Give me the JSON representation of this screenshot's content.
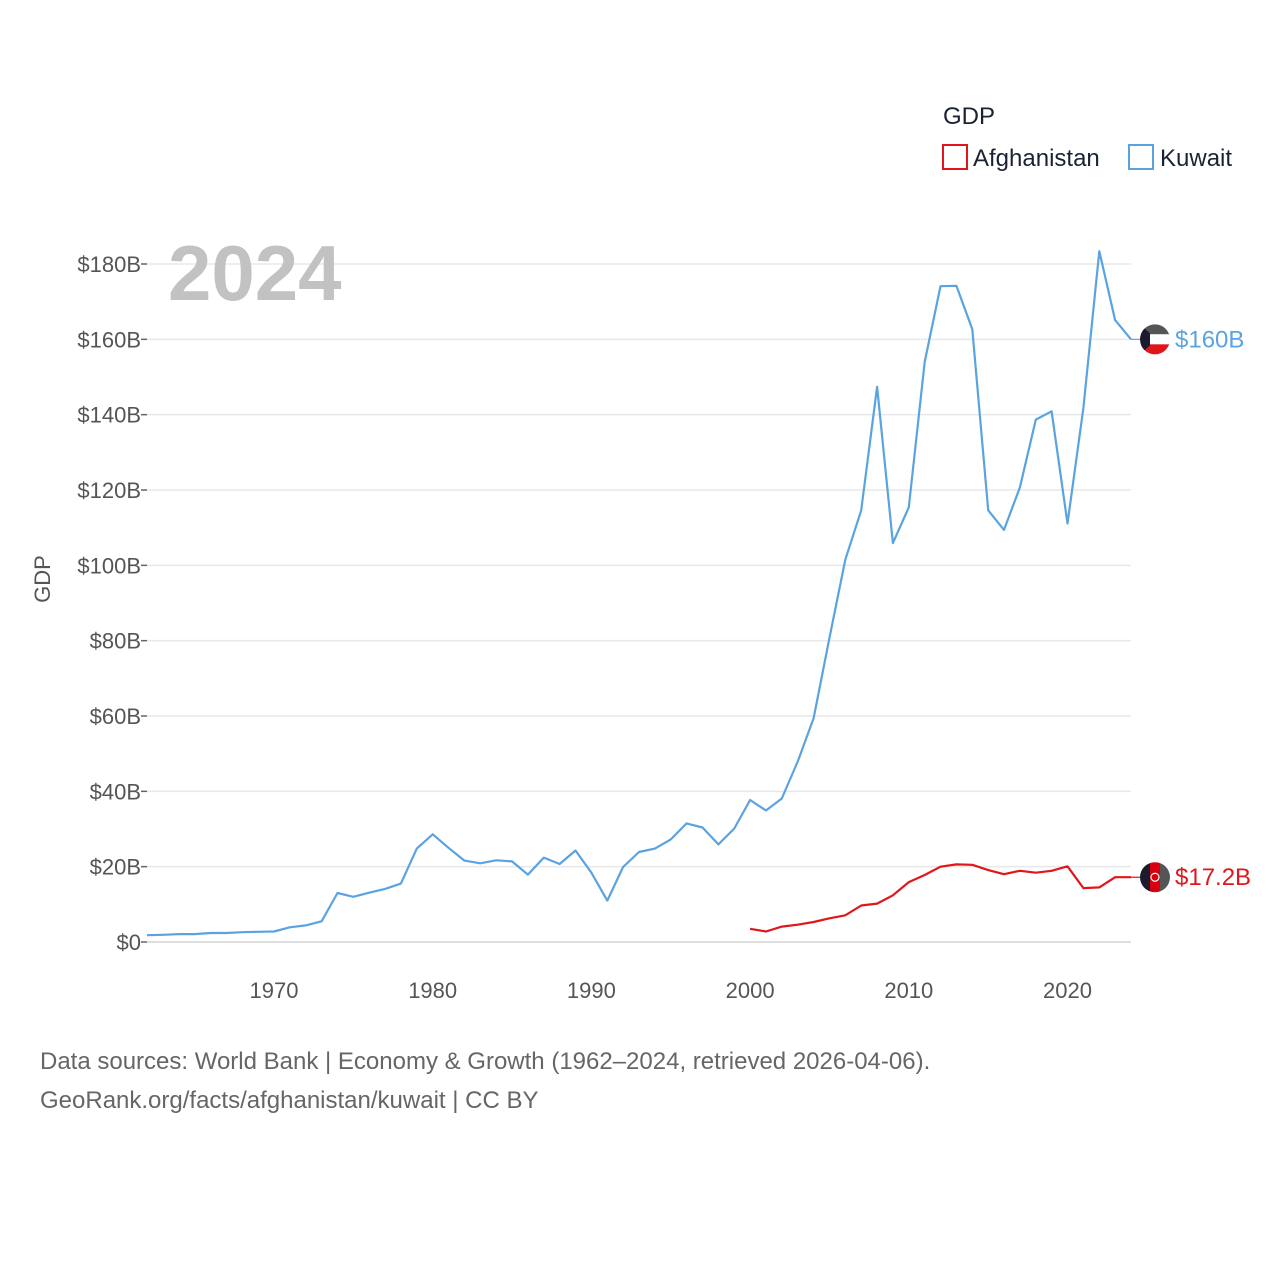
{
  "chart_data": {
    "type": "line",
    "title": "GDP",
    "year_label": "2024",
    "ylabel": "GDP",
    "xlabel": "",
    "xlim": [
      1962,
      2024
    ],
    "ylim": [
      0,
      180
    ],
    "y_ticks": [
      {
        "value": 0,
        "label": "$0"
      },
      {
        "value": 20,
        "label": "$20B"
      },
      {
        "value": 40,
        "label": "$40B"
      },
      {
        "value": 60,
        "label": "$60B"
      },
      {
        "value": 80,
        "label": "$80B"
      },
      {
        "value": 100,
        "label": "$100B"
      },
      {
        "value": 120,
        "label": "$120B"
      },
      {
        "value": 140,
        "label": "$140B"
      },
      {
        "value": 160,
        "label": "$160B"
      },
      {
        "value": 180,
        "label": "$180B"
      }
    ],
    "x_ticks": [
      {
        "value": 1970,
        "label": "1970"
      },
      {
        "value": 1980,
        "label": "1980"
      },
      {
        "value": 1990,
        "label": "1990"
      },
      {
        "value": 2000,
        "label": "2000"
      },
      {
        "value": 2010,
        "label": "2010"
      },
      {
        "value": 2020,
        "label": "2020"
      }
    ],
    "legend": {
      "title": "GDP",
      "position": "top-right"
    },
    "series": [
      {
        "name": "Afghanistan",
        "color": "#e0161b",
        "end_label": "$17.2B",
        "flag": "afghanistan",
        "points": [
          [
            2000,
            3.5
          ],
          [
            2001,
            2.8
          ],
          [
            2002,
            4.1
          ],
          [
            2003,
            4.6
          ],
          [
            2004,
            5.3
          ],
          [
            2005,
            6.3
          ],
          [
            2006,
            7.1
          ],
          [
            2007,
            9.7
          ],
          [
            2008,
            10.2
          ],
          [
            2009,
            12.4
          ],
          [
            2010,
            15.9
          ],
          [
            2011,
            17.8
          ],
          [
            2012,
            20.0
          ],
          [
            2013,
            20.6
          ],
          [
            2014,
            20.5
          ],
          [
            2015,
            19.1
          ],
          [
            2016,
            18.0
          ],
          [
            2017,
            18.9
          ],
          [
            2018,
            18.4
          ],
          [
            2019,
            18.9
          ],
          [
            2020,
            20.1
          ],
          [
            2021,
            14.3
          ],
          [
            2022,
            14.5
          ],
          [
            2023,
            17.2
          ],
          [
            2024,
            17.2
          ]
        ]
      },
      {
        "name": "Kuwait",
        "color": "#5ba3e0",
        "end_label": "$160B",
        "flag": "kuwait",
        "points": [
          [
            1962,
            1.8
          ],
          [
            1963,
            1.9
          ],
          [
            1964,
            2.1
          ],
          [
            1965,
            2.1
          ],
          [
            1966,
            2.4
          ],
          [
            1967,
            2.4
          ],
          [
            1968,
            2.6
          ],
          [
            1969,
            2.7
          ],
          [
            1970,
            2.8
          ],
          [
            1971,
            3.9
          ],
          [
            1972,
            4.4
          ],
          [
            1973,
            5.5
          ],
          [
            1974,
            13.0
          ],
          [
            1975,
            12.0
          ],
          [
            1976,
            13.1
          ],
          [
            1977,
            14.1
          ],
          [
            1978,
            15.5
          ],
          [
            1979,
            24.8
          ],
          [
            1980,
            28.6
          ],
          [
            1981,
            25.0
          ],
          [
            1982,
            21.6
          ],
          [
            1983,
            20.9
          ],
          [
            1984,
            21.7
          ],
          [
            1985,
            21.4
          ],
          [
            1986,
            17.9
          ],
          [
            1987,
            22.4
          ],
          [
            1988,
            20.7
          ],
          [
            1989,
            24.3
          ],
          [
            1990,
            18.4
          ],
          [
            1991,
            11.0
          ],
          [
            1992,
            19.9
          ],
          [
            1993,
            23.9
          ],
          [
            1994,
            24.8
          ],
          [
            1995,
            27.2
          ],
          [
            1996,
            31.5
          ],
          [
            1997,
            30.4
          ],
          [
            1998,
            25.9
          ],
          [
            1999,
            30.1
          ],
          [
            2000,
            37.7
          ],
          [
            2001,
            34.9
          ],
          [
            2002,
            38.1
          ],
          [
            2003,
            47.9
          ],
          [
            2004,
            59.4
          ],
          [
            2005,
            80.8
          ],
          [
            2006,
            101.5
          ],
          [
            2007,
            114.6
          ],
          [
            2008,
            147.4
          ],
          [
            2009,
            105.9
          ],
          [
            2010,
            115.4
          ],
          [
            2011,
            154.0
          ],
          [
            2012,
            174.1
          ],
          [
            2013,
            174.2
          ],
          [
            2014,
            162.7
          ],
          [
            2015,
            114.6
          ],
          [
            2016,
            109.4
          ],
          [
            2017,
            120.7
          ],
          [
            2018,
            138.7
          ],
          [
            2019,
            140.9
          ],
          [
            2020,
            111.1
          ],
          [
            2021,
            141.8
          ],
          [
            2022,
            183.4
          ],
          [
            2023,
            165.1
          ],
          [
            2024,
            160.0
          ]
        ]
      }
    ]
  },
  "source": {
    "line1": "Data sources: World Bank | Economy & Growth (1962–2024, retrieved 2026-04-06).",
    "line2": "GeoRank.org/facts/afghanistan/kuwait | CC BY"
  }
}
